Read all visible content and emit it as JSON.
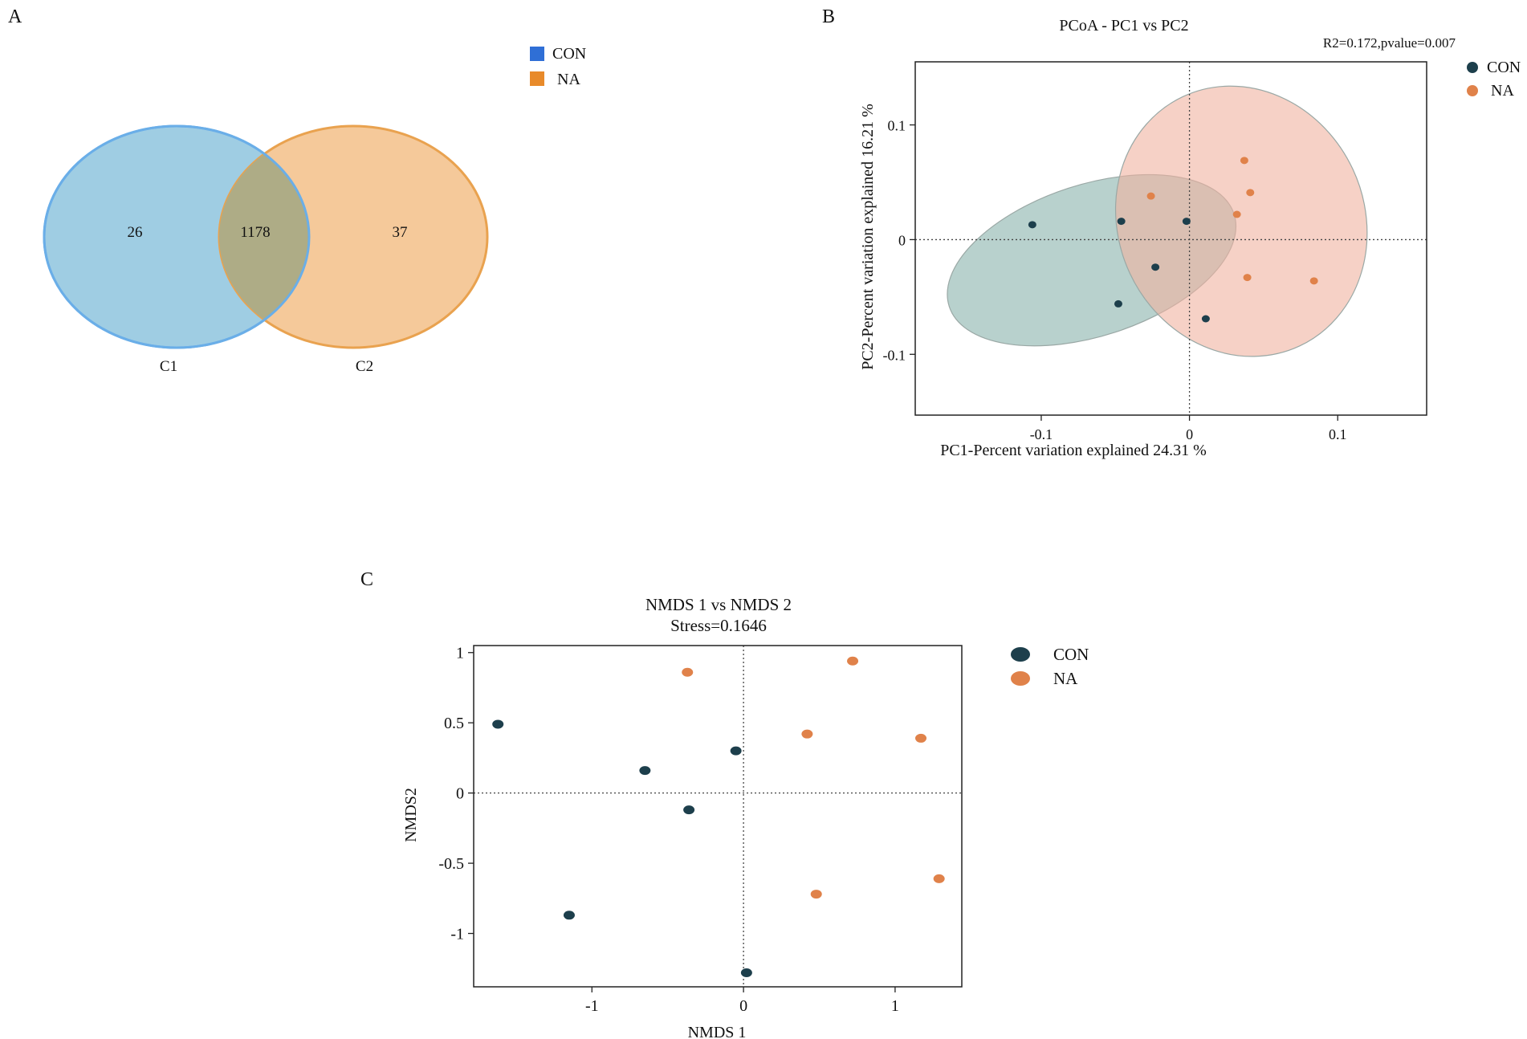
{
  "colors": {
    "con_venn": "#2f6fd6",
    "na_venn": "#e88a2a",
    "con_circle_fill": "#9fcde3",
    "con_circle_stroke": "#6aaee8",
    "na_circle_fill": "#f5c99a",
    "na_circle_stroke": "#e9a24f",
    "overlap_fill": "#aeac86",
    "con_point": "#1d3f4c",
    "na_point": "#e0824a",
    "con_ellipse_fill": "#88b3ac",
    "na_ellipse_fill": "#f0b3a0"
  },
  "chart_data": [
    {
      "panel": "A",
      "type": "venn",
      "legend": [
        "CON",
        "NA"
      ],
      "sets": [
        {
          "name": "C1",
          "only": 26
        },
        {
          "name": "C2",
          "only": 37
        }
      ],
      "intersection": 1178
    },
    {
      "panel": "B",
      "type": "scatter",
      "title": "PCoA - PC1 vs PC2",
      "annotation": "R2=0.172,pvalue=0.007",
      "xlabel": "PC1-Percent variation explained   24.31 %",
      "ylabel": "PC2-Percent variation explained 16.21 %",
      "xlim": [
        -0.185,
        0.16
      ],
      "ylim": [
        -0.153,
        0.155
      ],
      "xticks": [
        {
          "v": -0.1,
          "label": "-0.1"
        },
        {
          "v": 0,
          "label": "0"
        },
        {
          "v": 0.1,
          "label": "0.1"
        }
      ],
      "yticks": [
        {
          "v": 0.1,
          "label": "0.1"
        },
        {
          "v": 0,
          "label": "0"
        },
        {
          "v": -0.1,
          "label": "-0.1"
        }
      ],
      "legend": [
        "CON",
        "NA"
      ],
      "series": [
        {
          "name": "CON",
          "points": [
            [
              -0.106,
              0.013
            ],
            [
              -0.046,
              0.016
            ],
            [
              -0.002,
              0.016
            ],
            [
              -0.023,
              -0.024
            ],
            [
              -0.048,
              -0.056
            ],
            [
              0.011,
              -0.069
            ]
          ]
        },
        {
          "name": "NA",
          "points": [
            [
              0.037,
              0.069
            ],
            [
              0.041,
              0.041
            ],
            [
              -0.026,
              0.038
            ],
            [
              0.032,
              0.022
            ],
            [
              0.039,
              -0.033
            ],
            [
              0.084,
              -0.036
            ]
          ]
        }
      ],
      "ellipses": [
        {
          "name": "CON",
          "cx": -0.066,
          "cy": -0.018,
          "rx": 0.101,
          "ry": 0.066,
          "angle_deg": -18
        },
        {
          "name": "NA",
          "cx": 0.035,
          "cy": 0.016,
          "rx": 0.083,
          "ry": 0.12,
          "angle_deg": -25
        }
      ]
    },
    {
      "panel": "C",
      "type": "scatter",
      "title": "NMDS 1  vs  NMDS 2",
      "subtitle": "Stress=0.1646",
      "xlabel": "NMDS 1",
      "ylabel": "NMDS2",
      "xlim": [
        -1.78,
        1.44
      ],
      "ylim": [
        -1.38,
        1.05
      ],
      "xticks": [
        {
          "v": -1,
          "label": "-1"
        },
        {
          "v": 0,
          "label": "0"
        },
        {
          "v": 1,
          "label": "1"
        }
      ],
      "yticks": [
        {
          "v": 1,
          "label": "1"
        },
        {
          "v": 0.5,
          "label": "0.5"
        },
        {
          "v": 0,
          "label": "0"
        },
        {
          "v": -0.5,
          "label": "-0.5"
        },
        {
          "v": -1,
          "label": "-1"
        }
      ],
      "legend": [
        "CON",
        "NA"
      ],
      "series": [
        {
          "name": "CON",
          "points": [
            [
              -1.62,
              0.49
            ],
            [
              -0.65,
              0.16
            ],
            [
              -0.05,
              0.3
            ],
            [
              -0.36,
              -0.12
            ],
            [
              -1.15,
              -0.87
            ],
            [
              0.02,
              -1.28
            ]
          ]
        },
        {
          "name": "NA",
          "points": [
            [
              -0.37,
              0.86
            ],
            [
              0.72,
              0.94
            ],
            [
              0.42,
              0.42
            ],
            [
              1.17,
              0.39
            ],
            [
              0.48,
              -0.72
            ],
            [
              1.29,
              -0.61
            ]
          ]
        }
      ]
    }
  ],
  "panels": {
    "a_label": "A",
    "b_label": "B",
    "c_label": "C"
  }
}
